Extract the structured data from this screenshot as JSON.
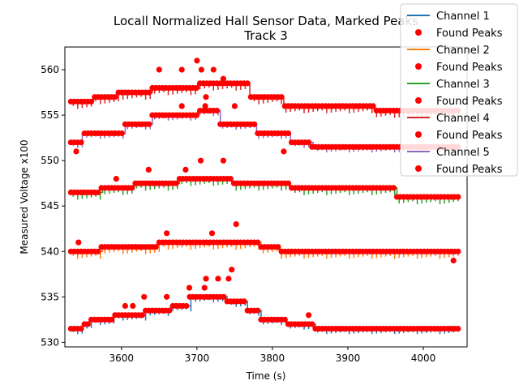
{
  "chart_data": {
    "type": "line",
    "title": "Locall Normalized Hall Sensor Data, Marked Peaks",
    "subtitle": "Track 3",
    "xlabel": "Time (s)",
    "ylabel": "Measured Voltage x100",
    "xlim": [
      3525,
      4058
    ],
    "ylim": [
      529.5,
      562.5
    ],
    "xticks": [
      3600,
      3700,
      3800,
      3900,
      4000
    ],
    "yticks": [
      530,
      535,
      540,
      545,
      550,
      555,
      560
    ],
    "grid": false,
    "legend_position": "top-right",
    "peak_color": "#ff0000",
    "series": [
      {
        "name": "Channel 1",
        "color": "#1f77b4",
        "peak_label": "Found Peaks",
        "x_range": [
          3533,
          4048
        ],
        "dip": 0.6,
        "segments": [
          [
            3533,
            3547,
            531.5
          ],
          [
            3547,
            3560,
            532.0
          ],
          [
            3560,
            3590,
            532.5
          ],
          [
            3590,
            3630,
            533.0
          ],
          [
            3630,
            3665,
            533.5
          ],
          [
            3665,
            3690,
            534.0
          ],
          [
            3690,
            3740,
            535.0
          ],
          [
            3740,
            3765,
            534.5
          ],
          [
            3765,
            3785,
            533.5
          ],
          [
            3785,
            3818,
            532.5
          ],
          [
            3818,
            3856,
            532.0
          ],
          [
            3856,
            4048,
            531.5
          ]
        ],
        "peaks_extra": [
          [
            3605,
            534.0
          ],
          [
            3615,
            534.0
          ],
          [
            3630,
            535.0
          ],
          [
            3660,
            535.0
          ],
          [
            3690,
            536.0
          ],
          [
            3710,
            536.0
          ],
          [
            3712,
            537.0
          ],
          [
            3728,
            537.0
          ],
          [
            3742,
            537.0
          ],
          [
            3746,
            538.0
          ],
          [
            3848,
            533.0
          ]
        ]
      },
      {
        "name": "Channel 2",
        "color": "#ff7f0e",
        "peak_label": "Found Peaks",
        "x_range": [
          3533,
          4048
        ],
        "dip": 0.8,
        "segments": [
          [
            3533,
            3573,
            540.0
          ],
          [
            3573,
            3648,
            540.5
          ],
          [
            3648,
            3700,
            541.0
          ],
          [
            3700,
            3785,
            541.0
          ],
          [
            3785,
            3808,
            540.5
          ],
          [
            3808,
            4048,
            540.0
          ]
        ],
        "peaks_extra": [
          [
            3543,
            541.0
          ],
          [
            3660,
            542.0
          ],
          [
            3720,
            542.0
          ],
          [
            3752,
            543.0
          ],
          [
            4040,
            539.0
          ]
        ]
      },
      {
        "name": "Channel 3",
        "color": "#2ca02c",
        "peak_label": "Found Peaks",
        "x_range": [
          3533,
          4048
        ],
        "dip": 0.8,
        "segments": [
          [
            3533,
            3573,
            546.5
          ],
          [
            3573,
            3616,
            547.0
          ],
          [
            3616,
            3676,
            547.5
          ],
          [
            3676,
            3745,
            548.0
          ],
          [
            3745,
            3822,
            547.5
          ],
          [
            3822,
            3965,
            547.0
          ],
          [
            3965,
            4048,
            546.0
          ]
        ],
        "peaks_extra": [
          [
            3593,
            548.0
          ],
          [
            3636,
            549.0
          ],
          [
            3685,
            549.0
          ],
          [
            3705,
            550.0
          ],
          [
            3735,
            550.0
          ]
        ]
      },
      {
        "name": "Channel 4",
        "color": "#d62728",
        "peak_label": "Found Peaks",
        "x_range": [
          3533,
          4048
        ],
        "dip": 0.8,
        "segments": [
          [
            3533,
            3563,
            556.5
          ],
          [
            3563,
            3595,
            557.0
          ],
          [
            3595,
            3640,
            557.5
          ],
          [
            3640,
            3700,
            558.0
          ],
          [
            3700,
            3770,
            558.5
          ],
          [
            3770,
            3815,
            557.0
          ],
          [
            3815,
            3935,
            556.0
          ],
          [
            3935,
            4048,
            555.5
          ]
        ],
        "peaks_extra": [
          [
            3650,
            560.0
          ],
          [
            3680,
            560.0
          ],
          [
            3700,
            561.0
          ],
          [
            3706,
            560.0
          ],
          [
            3722,
            560.0
          ],
          [
            3735,
            559.0
          ]
        ]
      },
      {
        "name": "Channel 5",
        "color": "#9467bd",
        "peak_label": "Found Peaks",
        "x_range": [
          3533,
          4048
        ],
        "dip": 0.6,
        "segments": [
          [
            3533,
            3548,
            552.0
          ],
          [
            3548,
            3603,
            553.0
          ],
          [
            3603,
            3640,
            554.0
          ],
          [
            3640,
            3700,
            555.0
          ],
          [
            3700,
            3730,
            555.5
          ],
          [
            3730,
            3778,
            554.0
          ],
          [
            3778,
            3822,
            553.0
          ],
          [
            3822,
            3852,
            552.0
          ],
          [
            3852,
            4048,
            551.5
          ]
        ],
        "peaks_extra": [
          [
            3540,
            551.0
          ],
          [
            3680,
            556.0
          ],
          [
            3711,
            556.0
          ],
          [
            3712,
            557.0
          ],
          [
            3750,
            556.0
          ],
          [
            3815,
            551.0
          ]
        ]
      }
    ]
  }
}
